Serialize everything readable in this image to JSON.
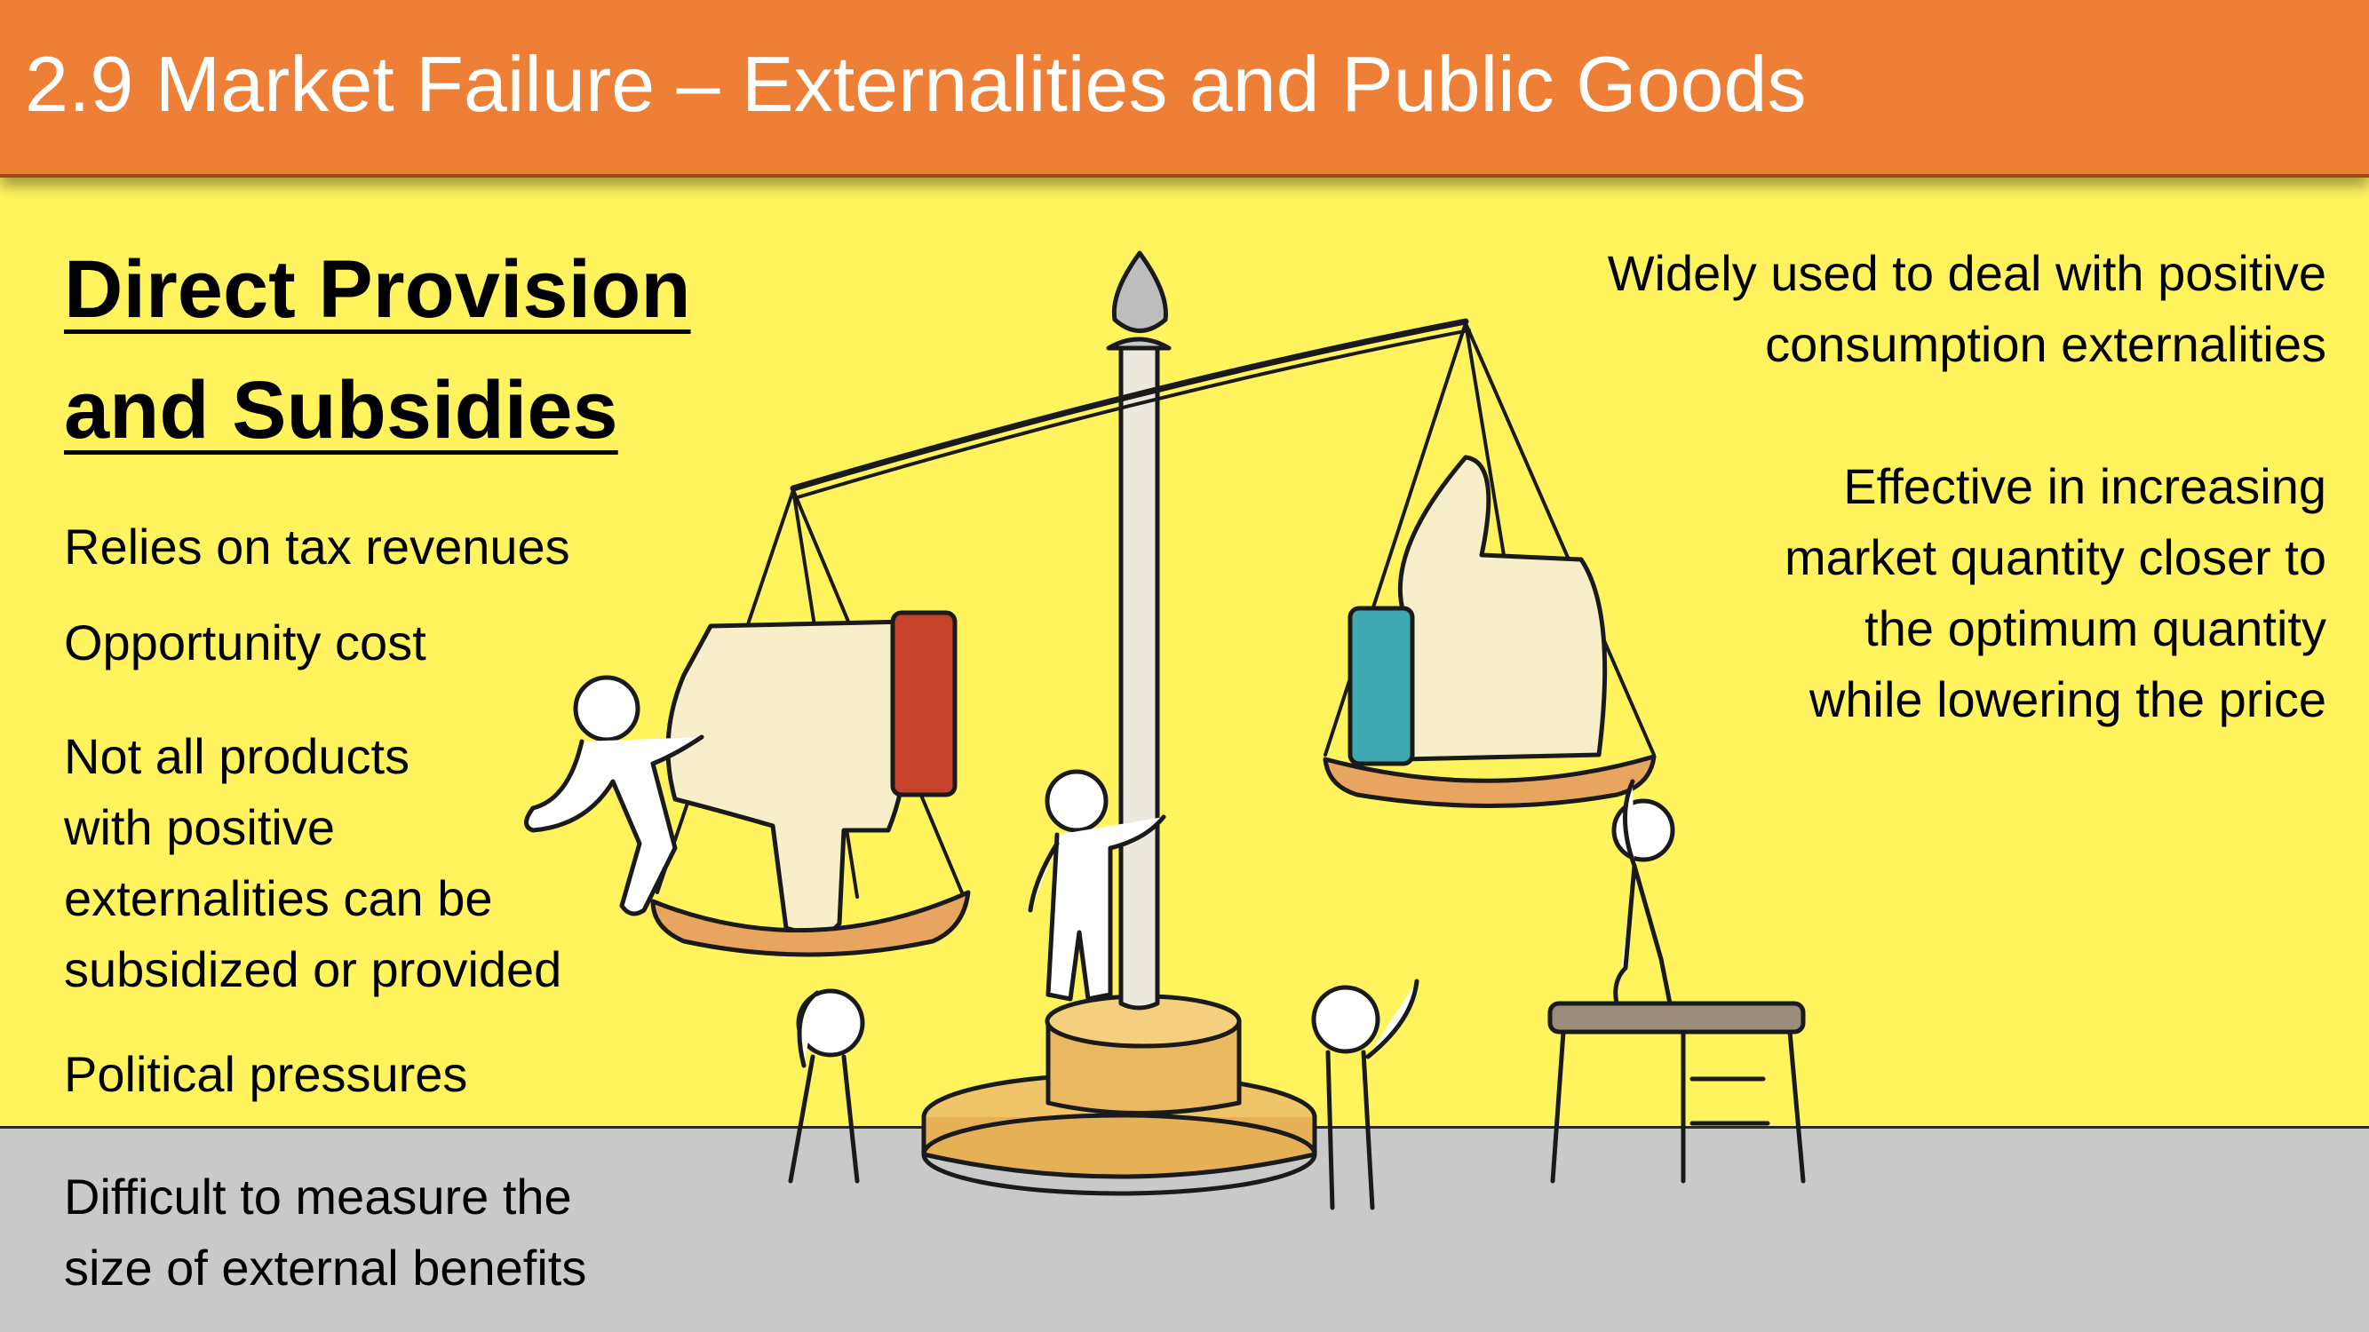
{
  "slide": {
    "title": "2.9 Market Failure – Externalities and Public Goods",
    "heading_lines": [
      "Direct Provision",
      "and Subsidies"
    ],
    "left_points": [
      {
        "lines": [
          "Relies on tax revenues"
        ]
      },
      {
        "lines": [
          "Opportunity cost"
        ]
      },
      {
        "lines": [
          "Not all products",
          "with positive",
          "externalities can be",
          "subsidized or provided"
        ]
      },
      {
        "lines": [
          "Political pressures"
        ]
      },
      {
        "lines": [
          "Difficult to measure the",
          "size of external benefits"
        ]
      }
    ],
    "right_points": [
      {
        "lines": [
          "Widely used to deal with positive",
          "consumption externalities"
        ]
      },
      {
        "lines": [
          "Effective in increasing",
          "market quantity  closer to",
          "the optimum quantity",
          "while lowering the price"
        ]
      }
    ]
  },
  "colors": {
    "title_bar": "#EE7F37",
    "background": "#FFF45E",
    "floor": "#C9C9C9",
    "thumbs_down_cuff": "#C5432B",
    "thumbs_up_cuff": "#3FA8B0",
    "pan": "#E7A55F"
  },
  "illustration": {
    "description_icons": [
      "balance-scale-icon",
      "thumbs-down-icon",
      "thumbs-up-icon",
      "stick-figure-icon",
      "stool-icon"
    ]
  }
}
